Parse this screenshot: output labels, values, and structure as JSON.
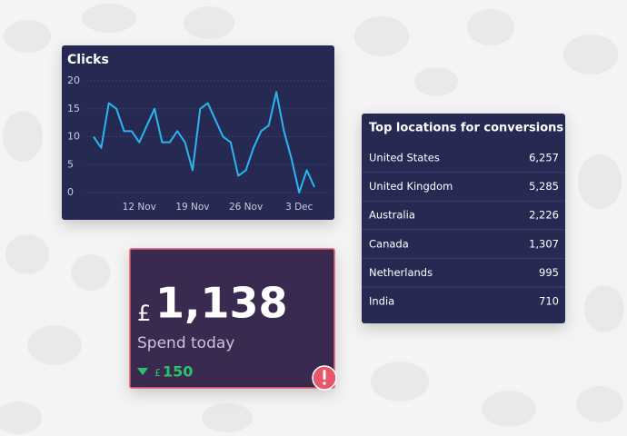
{
  "chart_data": {
    "type": "line",
    "title": "Clicks",
    "categories": [
      null,
      null,
      null,
      null,
      null,
      null,
      "12 Nov",
      null,
      null,
      null,
      null,
      null,
      null,
      "19 Nov",
      null,
      null,
      null,
      null,
      null,
      null,
      "26 Nov",
      null,
      null,
      null,
      null,
      null,
      null,
      "3 Dec",
      null,
      null
    ],
    "series": [
      {
        "name": "Clicks",
        "color": "#2bb6f0",
        "values": [
          10,
          8,
          16,
          15,
          11,
          11,
          9,
          12,
          15,
          9,
          9,
          11,
          9,
          4,
          15,
          16,
          13,
          10,
          9,
          3,
          4,
          8,
          11,
          12,
          18,
          11,
          6,
          0,
          4,
          1
        ]
      }
    ],
    "ylim": [
      0,
      20
    ],
    "yticks": [
      0,
      5,
      10,
      15,
      20
    ],
    "grid": true
  },
  "locations": {
    "title": "Top locations for conversions",
    "rows": [
      [
        "United States",
        "6,257"
      ],
      [
        "United Kingdom",
        "5,285"
      ],
      [
        "Australia",
        "2,226"
      ],
      [
        "Canada",
        "1,307"
      ],
      [
        "Netherlands",
        "995"
      ],
      [
        "India",
        "710"
      ]
    ]
  },
  "spend": {
    "currency": "£",
    "amount": "1,138",
    "label": "Spend today",
    "change": "150"
  }
}
